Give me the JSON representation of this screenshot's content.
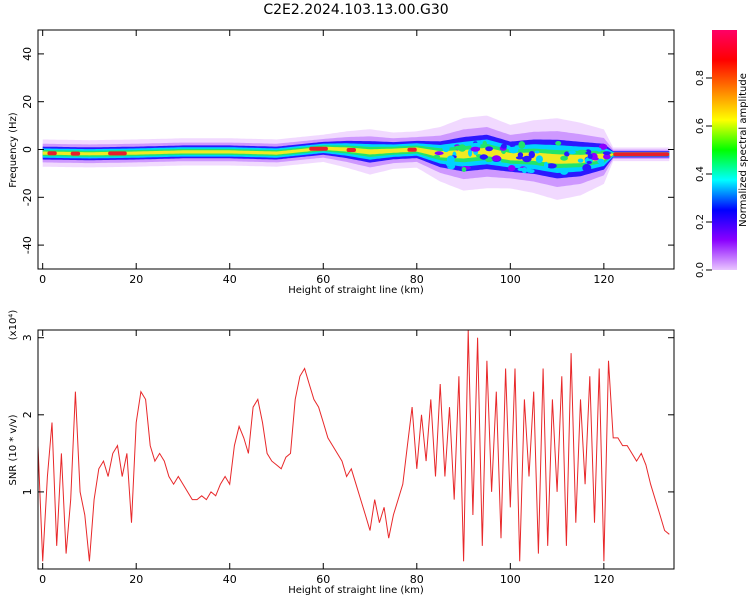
{
  "title": "C2E2.2024.103.13.00.G30",
  "chart_data": [
    {
      "type": "heatmap",
      "xlabel": "Height of straight line (km)",
      "ylabel": "Frequency (Hz)",
      "xlim": [
        -1,
        135
      ],
      "ylim": [
        -50,
        50
      ],
      "x_ticks": [
        0,
        20,
        40,
        60,
        80,
        100,
        120
      ],
      "y_ticks": [
        40,
        20,
        0,
        -20,
        -40
      ],
      "colorbar": {
        "label": "Normalized spectral amplitude",
        "range": [
          0.0,
          1.0
        ],
        "ticks": [
          "0.0",
          "0.2",
          "0.4",
          "0.6",
          "0.8"
        ],
        "colors": [
          "#e9c6ff",
          "#8a00ff",
          "#0000ff",
          "#00ffff",
          "#00ff00",
          "#ffff00",
          "#ff8000",
          "#ff0000",
          "#ff0066"
        ]
      },
      "band": {
        "x": [
          0,
          10,
          20,
          30,
          40,
          50,
          55,
          60,
          65,
          70,
          75,
          80,
          85,
          90,
          95,
          100,
          105,
          110,
          115,
          120,
          122,
          134
        ],
        "center_hz": [
          -1.5,
          -1.8,
          -1.5,
          -1.0,
          -1.0,
          -1.5,
          -0.5,
          0.5,
          0.0,
          -1.0,
          -0.5,
          0.0,
          -2.0,
          -2.0,
          -1.0,
          -3.0,
          -3.0,
          -4.0,
          -4.0,
          -3.0,
          -2.0,
          -2.0
        ],
        "halfwidth_hz": [
          3,
          3,
          3,
          3,
          3,
          3,
          3,
          3,
          4,
          5,
          4,
          4,
          6,
          8,
          8,
          7,
          8,
          9,
          8,
          6,
          1.5,
          1.5
        ]
      }
    },
    {
      "type": "line",
      "xlabel": "Height of straight line (km)",
      "ylabel": "SNR (10 * v/v)",
      "y_multiplier": "(x10⁴)",
      "xlim": [
        -1,
        135
      ],
      "ylim": [
        0,
        3.1
      ],
      "x_ticks": [
        0,
        20,
        40,
        60,
        80,
        100,
        120
      ],
      "y_ticks": [
        1,
        2,
        3
      ],
      "series": [
        {
          "color": "#e8282a",
          "x": [
            -1,
            0,
            1,
            2,
            3,
            4,
            5,
            6,
            7,
            8,
            9,
            10,
            11,
            12,
            13,
            14,
            15,
            16,
            17,
            18,
            19,
            20,
            21,
            22,
            23,
            24,
            25,
            26,
            27,
            28,
            29,
            30,
            31,
            32,
            33,
            34,
            35,
            36,
            37,
            38,
            39,
            40,
            41,
            42,
            43,
            44,
            45,
            46,
            47,
            48,
            49,
            50,
            51,
            52,
            53,
            54,
            55,
            56,
            57,
            58,
            59,
            60,
            61,
            62,
            63,
            64,
            65,
            66,
            67,
            68,
            69,
            70,
            71,
            72,
            73,
            74,
            75,
            76,
            77,
            78,
            79,
            80,
            81,
            82,
            83,
            84,
            85,
            86,
            87,
            88,
            89,
            90,
            91,
            92,
            93,
            94,
            95,
            96,
            97,
            98,
            99,
            100,
            101,
            102,
            103,
            104,
            105,
            106,
            107,
            108,
            109,
            110,
            111,
            112,
            113,
            114,
            115,
            116,
            117,
            118,
            119,
            120,
            121,
            122,
            123,
            124,
            125,
            126,
            127,
            128,
            129,
            130,
            131,
            132,
            133,
            134
          ],
          "y": [
            1.6,
            0.1,
            1.2,
            1.9,
            0.3,
            1.5,
            0.2,
            0.9,
            2.3,
            1.0,
            0.7,
            0.1,
            0.9,
            1.3,
            1.4,
            1.2,
            1.5,
            1.6,
            1.2,
            1.5,
            0.6,
            1.9,
            2.3,
            2.2,
            1.6,
            1.4,
            1.5,
            1.4,
            1.2,
            1.1,
            1.2,
            1.1,
            1.0,
            0.9,
            0.9,
            0.95,
            0.9,
            1.0,
            0.95,
            1.1,
            1.2,
            1.1,
            1.6,
            1.85,
            1.7,
            1.5,
            2.1,
            2.2,
            1.9,
            1.5,
            1.4,
            1.35,
            1.3,
            1.45,
            1.5,
            2.2,
            2.5,
            2.6,
            2.4,
            2.2,
            2.1,
            1.9,
            1.7,
            1.6,
            1.5,
            1.4,
            1.2,
            1.3,
            1.1,
            0.9,
            0.7,
            0.5,
            0.9,
            0.6,
            0.8,
            0.4,
            0.7,
            0.9,
            1.1,
            1.6,
            2.1,
            1.3,
            2.0,
            1.4,
            2.2,
            1.2,
            2.4,
            1.2,
            2.1,
            0.9,
            2.5,
            0.1,
            3.1,
            0.7,
            3.0,
            0.3,
            2.7,
            1.0,
            2.3,
            0.4,
            2.6,
            0.8,
            2.6,
            0.1,
            2.2,
            1.2,
            2.3,
            0.2,
            2.6,
            0.3,
            2.2,
            1.0,
            2.5,
            0.3,
            2.8,
            0.6,
            2.2,
            1.1,
            2.5,
            0.6,
            2.6,
            0.1,
            2.7,
            1.7,
            1.7,
            1.6,
            1.6,
            1.5,
            1.4,
            1.5,
            1.35,
            1.1,
            0.9,
            0.7,
            0.5,
            0.45
          ]
        }
      ]
    }
  ]
}
